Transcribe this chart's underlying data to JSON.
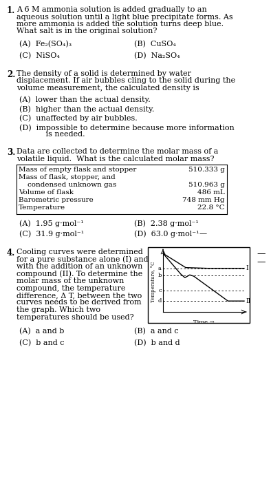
{
  "bg_color": "#ffffff",
  "text_color": "#000000",
  "q1": {
    "num": "1.",
    "lines": [
      "A 6 M ammonia solution is added gradually to an",
      "aqueous solution until a light blue precipitate forms. As",
      "more ammonia is added the solution turns deep blue.",
      "What salt is in the original solution?"
    ],
    "optA": "(A)  Fe₂(SO₄)₃",
    "optB": "(B)  CuSO₄",
    "optC": "(C)  NiSO₄",
    "optD": "(D)  Na₂SO₄"
  },
  "q2": {
    "num": "2.",
    "lines": [
      "The density of a solid is determined by water",
      "displacement. If air bubbles cling to the solid during the",
      "volume measurement, the calculated density is"
    ],
    "optA": "(A)  lower than the actual density.",
    "optB": "(B)  higher than the actual density.",
    "optC": "(C)  unaffected by air bubbles.",
    "optD1": "(D)  impossible to determine because more information",
    "optD2": "       is needed."
  },
  "q3": {
    "num": "3.",
    "lines": [
      "Data are collected to determine the molar mass of a",
      "volatile liquid.  What is the calculated molar mass?"
    ],
    "table": [
      [
        "Mass of empty flask and stopper",
        "510.333 g"
      ],
      [
        "Mass of flask, stopper, and",
        ""
      ],
      [
        "    condensed unknown gas",
        "510.963 g"
      ],
      [
        "Volume of flask",
        "486 mL"
      ],
      [
        "Barometric pressure",
        "748 mm Hg"
      ],
      [
        "Temperature",
        "22.8 °C"
      ]
    ],
    "optA": "(A)  1.95 g·mol⁻¹",
    "optB": "(B)  2.38 g·mol⁻¹",
    "optC": "(C)  31.9 g·mol⁻¹",
    "optD": "(D)  63.0 g·mol⁻¹"
  },
  "q4": {
    "num": "4.",
    "lines": [
      "Cooling curves were determined",
      "for a pure substance alone (I) and",
      "with the addition of an unknown",
      "compound (II). To determine the",
      "molar mass of the unknown",
      "compound, the temperature",
      "difference, Δ T, between the two",
      "curves needs to be derived from",
      "the graph. Which two",
      "temperatures should be used?"
    ],
    "optA": "(A)  a and b",
    "optB": "(B)  a and c",
    "optC": "(C)  b and c",
    "optD": "(D)  b and d"
  },
  "dash1_label": "—",
  "dash2_label": "—",
  "ylabel_graph": "Temperature, °C",
  "xlabel_graph": "Time →",
  "curve_I_label": "I",
  "curve_II_label": "II"
}
